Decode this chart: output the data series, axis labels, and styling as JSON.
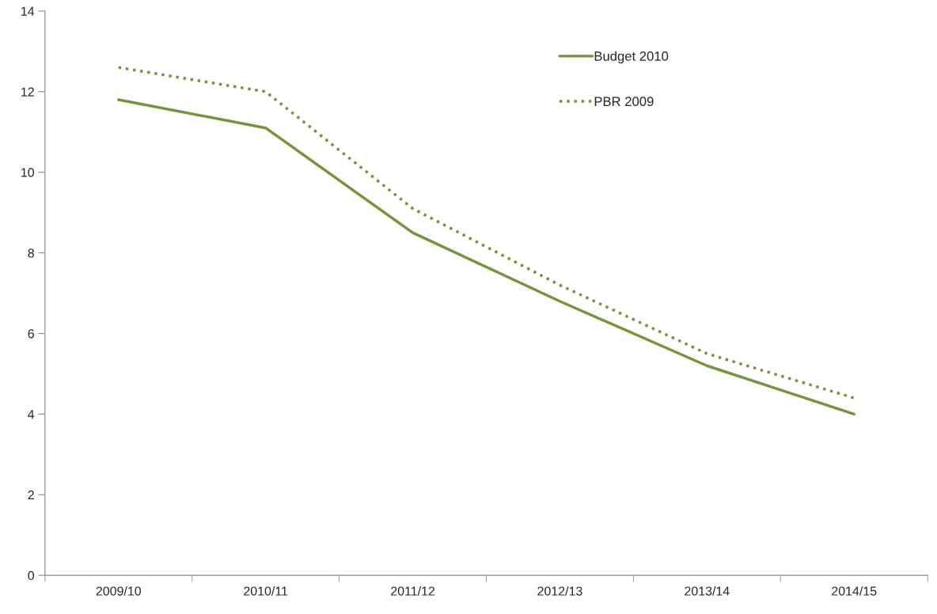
{
  "chart_data": {
    "type": "line",
    "categories": [
      "2009/10",
      "2010/11",
      "2011/12",
      "2012/13",
      "2013/14",
      "2014/15"
    ],
    "series": [
      {
        "name": "Budget 2010",
        "color": "#77933c",
        "line_style": "solid",
        "values": [
          11.8,
          11.1,
          8.5,
          6.8,
          5.2,
          4.0
        ]
      },
      {
        "name": "PBR 2009",
        "color": "#77933c",
        "line_style": "dotted",
        "values": [
          12.6,
          12.0,
          9.1,
          7.2,
          5.5,
          4.4
        ]
      }
    ],
    "ylim": [
      0,
      14
    ],
    "yticks": [
      0,
      2,
      4,
      6,
      8,
      10,
      12,
      14
    ],
    "grid": false,
    "legend": "top right",
    "marker": "none"
  }
}
